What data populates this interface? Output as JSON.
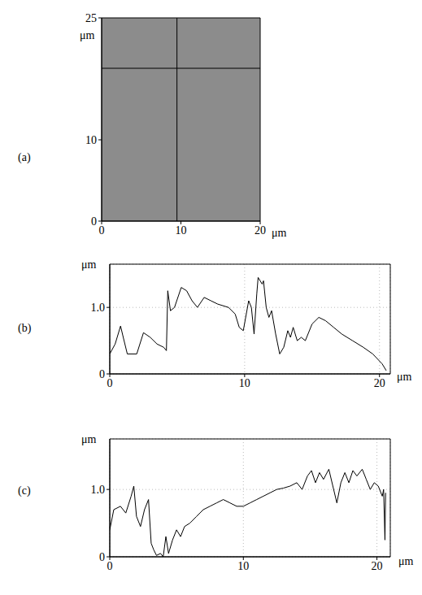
{
  "chart_data": [
    {
      "type": "image",
      "panel_label": "(a)",
      "x_label": "μm",
      "y_label": "μm",
      "xlim": [
        0,
        20
      ],
      "xticks": [
        0,
        10,
        20
      ],
      "ylim": [
        0,
        25
      ],
      "yticks": [
        0,
        10,
        25
      ],
      "crosshair": {
        "x": 9.5,
        "y": 18.8
      },
      "color": "#8c8c8c",
      "grid": false
    },
    {
      "type": "line",
      "panel_label": "(b)",
      "x_label": "μm",
      "y_label": "μm",
      "xlim": [
        0,
        20.8
      ],
      "xticks": [
        0,
        10,
        20
      ],
      "ylim": [
        0,
        1.65
      ],
      "yticks": [
        0,
        {
          "value": 1,
          "label": "1.0"
        }
      ],
      "grid": true,
      "color": "#000000",
      "x": [
        0,
        0.4,
        0.8,
        1.0,
        1.3,
        2.0,
        2.5,
        3.0,
        3.5,
        4.0,
        4.2,
        4.3,
        4.5,
        4.8,
        5.3,
        5.7,
        6.1,
        6.5,
        7.0,
        7.5,
        8.0,
        8.8,
        9.3,
        9.6,
        9.9,
        10.3,
        10.5,
        10.7,
        10.9,
        11.0,
        11.3,
        11.4,
        11.6,
        11.8,
        12.0,
        12.3,
        12.6,
        12.9,
        13.2,
        13.4,
        13.6,
        13.9,
        14.2,
        14.5,
        15.0,
        15.5,
        16.0,
        16.6,
        17.2,
        18.0,
        18.8,
        19.5,
        20.2,
        20.5
      ],
      "values": [
        0.3,
        0.45,
        0.72,
        0.55,
        0.3,
        0.3,
        0.62,
        0.55,
        0.45,
        0.4,
        0.35,
        1.25,
        0.95,
        1.0,
        1.3,
        1.25,
        1.1,
        1.0,
        1.15,
        1.1,
        1.05,
        1.0,
        0.9,
        0.7,
        0.65,
        1.1,
        1.0,
        0.6,
        1.2,
        1.45,
        1.35,
        1.4,
        1.0,
        0.85,
        0.95,
        0.6,
        0.3,
        0.4,
        0.65,
        0.55,
        0.7,
        0.5,
        0.55,
        0.5,
        0.75,
        0.85,
        0.8,
        0.7,
        0.6,
        0.5,
        0.4,
        0.3,
        0.15,
        0.05
      ]
    },
    {
      "type": "line",
      "panel_label": "(c)",
      "x_label": "μm",
      "y_label": "μm",
      "xlim": [
        0,
        21
      ],
      "xticks": [
        0,
        10,
        20
      ],
      "ylim": [
        0,
        1.75
      ],
      "yticks": [
        0,
        {
          "value": 1,
          "label": "1.0"
        }
      ],
      "grid": true,
      "color": "#000000",
      "x": [
        0,
        0.3,
        0.8,
        1.2,
        1.6,
        1.8,
        2.0,
        2.3,
        2.6,
        2.9,
        3.1,
        3.3,
        3.5,
        3.8,
        4.0,
        4.2,
        4.4,
        4.7,
        5.0,
        5.3,
        5.6,
        6.0,
        6.5,
        7.0,
        7.5,
        8.0,
        8.5,
        9.0,
        9.5,
        10.0,
        10.5,
        11.0,
        11.5,
        12.0,
        12.5,
        13.0,
        13.5,
        14.0,
        14.4,
        14.8,
        15.1,
        15.4,
        15.7,
        16.0,
        16.4,
        16.7,
        17.0,
        17.3,
        17.6,
        17.9,
        18.2,
        18.5,
        18.9,
        19.2,
        19.5,
        19.8,
        20.1,
        20.4,
        20.5,
        20.6,
        20.65
      ],
      "values": [
        0.4,
        0.7,
        0.75,
        0.65,
        0.9,
        1.05,
        0.6,
        0.45,
        0.7,
        0.85,
        0.2,
        0.1,
        0.02,
        0.05,
        0.0,
        0.3,
        0.05,
        0.25,
        0.4,
        0.3,
        0.45,
        0.5,
        0.6,
        0.7,
        0.75,
        0.8,
        0.85,
        0.8,
        0.75,
        0.75,
        0.8,
        0.85,
        0.9,
        0.95,
        1.0,
        1.02,
        1.05,
        1.1,
        1.0,
        1.2,
        1.28,
        1.1,
        1.25,
        1.15,
        1.3,
        1.05,
        0.8,
        1.1,
        1.25,
        1.1,
        1.28,
        1.2,
        1.3,
        1.15,
        1.0,
        1.1,
        1.05,
        0.9,
        1.0,
        0.25,
        0.95
      ]
    }
  ]
}
